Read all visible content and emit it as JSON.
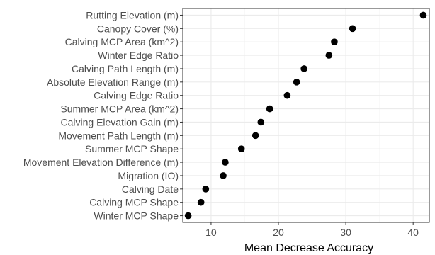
{
  "chart_data": {
    "type": "scatter",
    "xlabel": "Mean Decrease Accuracy",
    "ylabel": "",
    "xlim": [
      5.8,
      42.4
    ],
    "xticks": [
      10,
      20,
      30,
      40
    ],
    "xtick_labels": [
      "10",
      "20",
      "30",
      "40"
    ],
    "grid": true,
    "categories": [
      "Rutting Elevation (m)",
      "Canopy Cover (%)",
      "Calving MCP Area (km^2)",
      "Winter Edge Ratio",
      "Calving Path Length (m)",
      "Absolute Elevation Range (m)",
      "Calving Edge Ratio",
      "Summer MCP Area (km^2)",
      "Calving Elevation Gain (m)",
      "Movement Path Length (m)",
      "Summer MCP Shape",
      "Movement Elevation Difference (m)",
      "Migration (IO)",
      "Calving Date",
      "Calving MCP Shape",
      "Winter MCP Shape"
    ],
    "values": [
      41.5,
      31.0,
      28.3,
      27.5,
      23.8,
      22.7,
      21.3,
      18.7,
      17.4,
      16.6,
      14.5,
      12.1,
      11.8,
      9.2,
      8.5,
      6.6
    ]
  },
  "colors": {
    "point": "#000000",
    "grid": "#ebebeb",
    "border": "#333333",
    "label": "#4d4d4d"
  }
}
